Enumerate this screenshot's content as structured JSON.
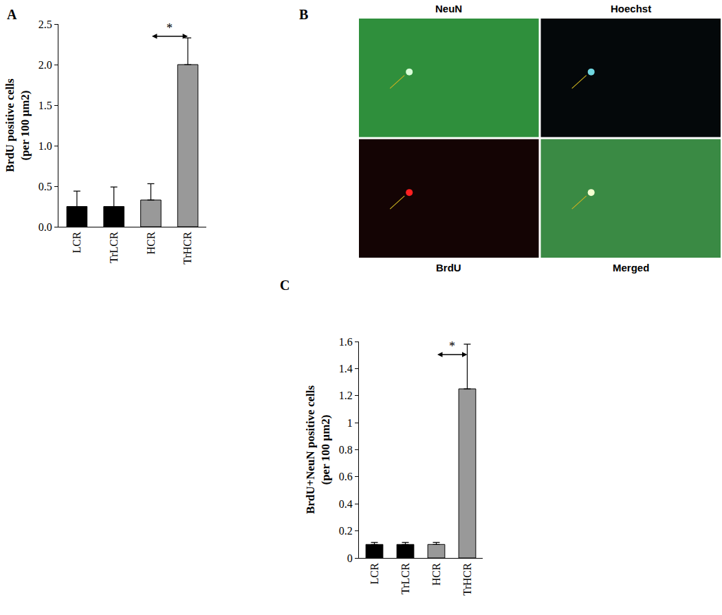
{
  "chart_data": [
    {
      "type": "bar",
      "panel": "A",
      "categories": [
        "LCR",
        "TrLCR",
        "HCR",
        "TrHCR"
      ],
      "values": [
        0.25,
        0.25,
        0.33,
        2.0
      ],
      "errors": [
        0.19,
        0.24,
        0.2,
        0.33
      ],
      "colors": [
        "#000000",
        "#000000",
        "#999999",
        "#999999"
      ],
      "y_label": "BrdU positive cells\n(per 100 µm2)",
      "ylim": [
        0,
        2.5
      ],
      "yticks": [
        {
          "value": 0,
          "label": "0.0"
        },
        {
          "value": 0.5,
          "label": "0.5"
        },
        {
          "value": 1,
          "label": "1.0"
        },
        {
          "value": 1.5,
          "label": "1.5"
        },
        {
          "value": 2,
          "label": "2.0"
        },
        {
          "value": 2.5,
          "label": "2.5"
        }
      ],
      "grid": false,
      "annotations": [
        {
          "text": "*",
          "from": "HCR",
          "to": "TrHCR"
        }
      ]
    },
    {
      "type": "bar",
      "panel": "C",
      "categories": [
        "LCR",
        "TrLCR",
        "HCR",
        "TrHCR"
      ],
      "values": [
        0.1,
        0.1,
        0.1,
        1.25
      ],
      "errors": [
        0.015,
        0.015,
        0.015,
        0.33
      ],
      "colors": [
        "#000000",
        "#000000",
        "#999999",
        "#999999"
      ],
      "y_label": "BrdU+NeuN positive cells\n(per 100 µm2)",
      "ylim": [
        0,
        1.6
      ],
      "yticks": [
        0,
        0.2,
        0.4,
        0.6,
        0.8,
        1,
        1.2,
        1.4,
        1.6
      ],
      "grid": false,
      "annotations": [
        {
          "text": "*",
          "from": "HCR",
          "to": "TrHCR"
        }
      ]
    }
  ],
  "image_panel": {
    "panel": "B",
    "captions": [
      "NeuN",
      "Hoechst",
      "BrdU",
      "Merged"
    ]
  }
}
